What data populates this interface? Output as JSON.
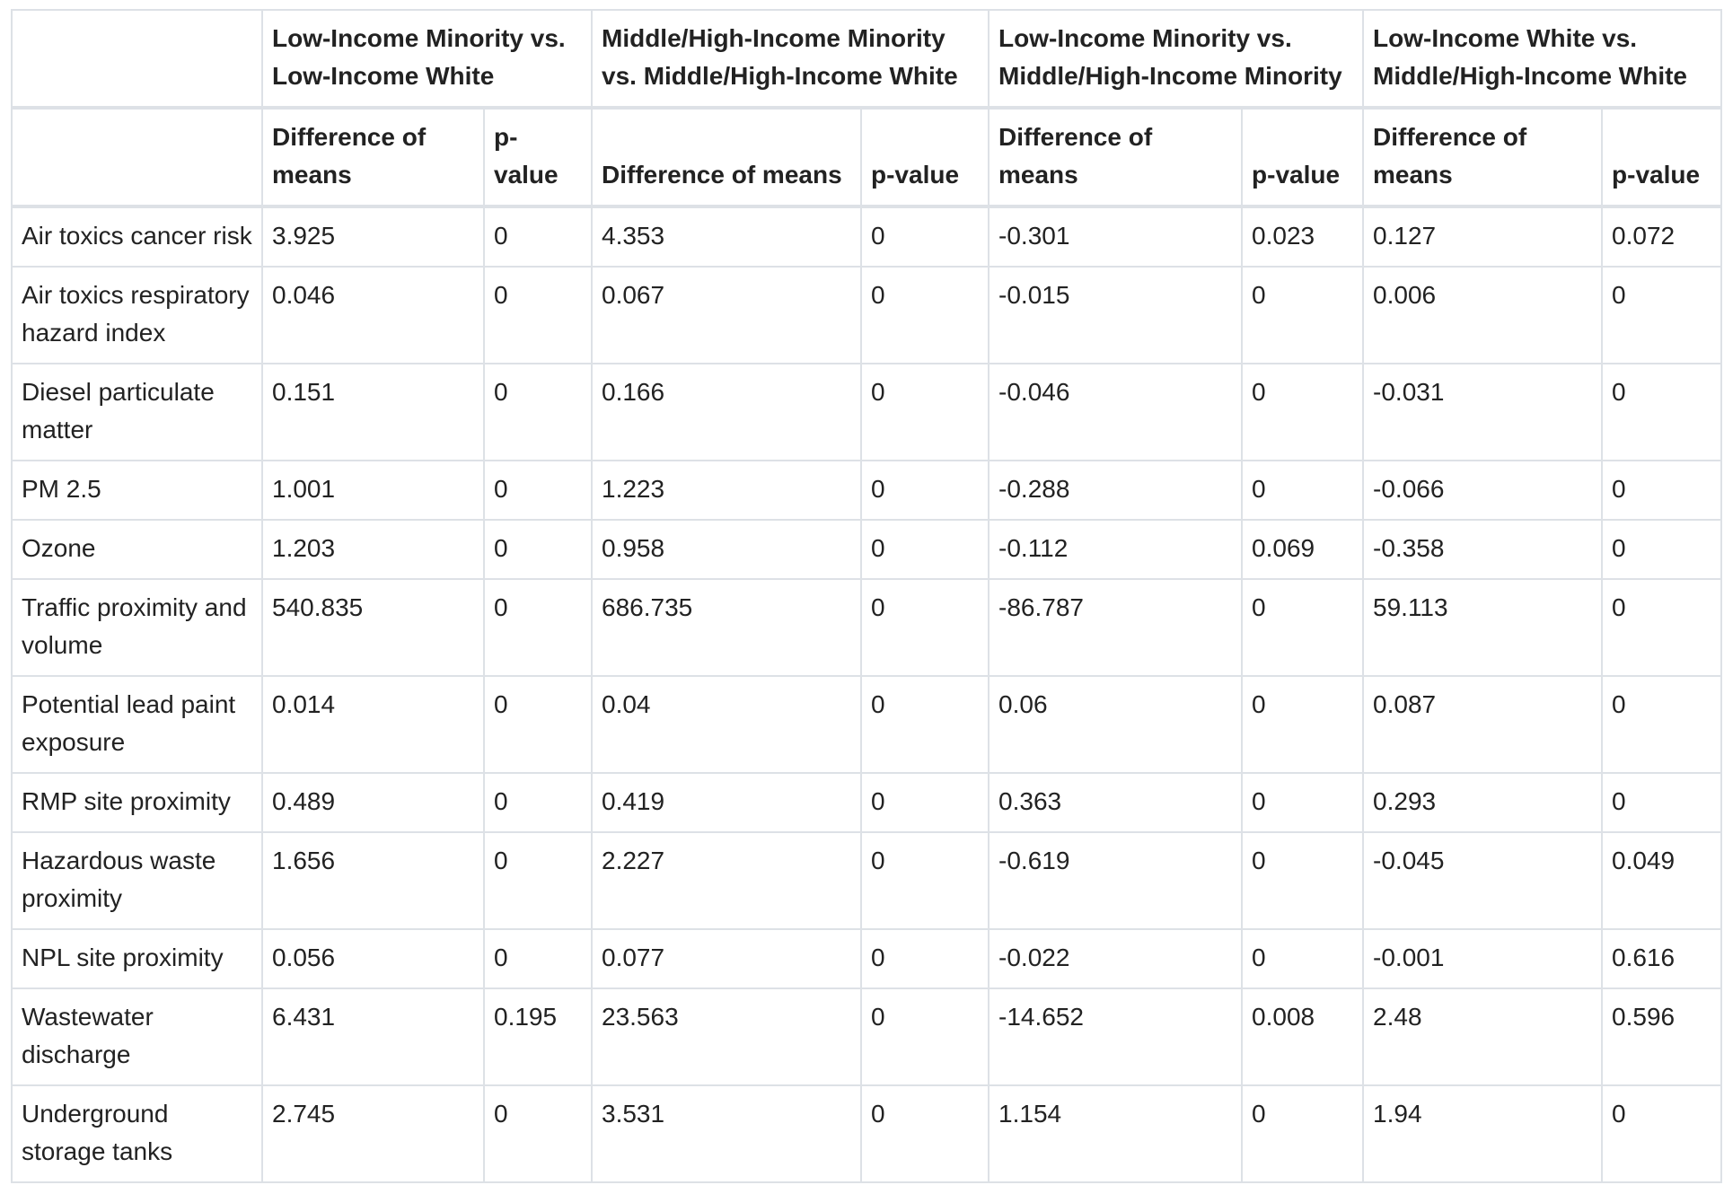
{
  "table": {
    "corner": "",
    "groups": [
      "Low-Income Minority vs. Low-Income White",
      "Middle/High-Income Minority vs. Middle/High-Income White",
      "Low-Income Minority vs. Middle/High-Income Minority",
      "Low-Income White vs. Middle/High-Income White"
    ],
    "subheaders": [
      "Difference of means",
      "p-value",
      "Difference of means",
      "p-value",
      "Difference of means",
      "p-value",
      "Difference of means",
      "p-value"
    ],
    "rows": [
      {
        "label": "Air toxics cancer risk",
        "values": [
          "3.925",
          "0",
          "4.353",
          "0",
          "-0.301",
          "0.023",
          "0.127",
          "0.072"
        ]
      },
      {
        "label": "Air toxics respiratory hazard index",
        "values": [
          "0.046",
          "0",
          "0.067",
          "0",
          "-0.015",
          "0",
          "0.006",
          "0"
        ]
      },
      {
        "label": "Diesel particulate matter",
        "values": [
          "0.151",
          "0",
          "0.166",
          "0",
          "-0.046",
          "0",
          "-0.031",
          "0"
        ]
      },
      {
        "label": "PM 2.5",
        "values": [
          "1.001",
          "0",
          "1.223",
          "0",
          "-0.288",
          "0",
          "-0.066",
          "0"
        ]
      },
      {
        "label": "Ozone",
        "values": [
          "1.203",
          "0",
          "0.958",
          "0",
          "-0.112",
          "0.069",
          "-0.358",
          "0"
        ]
      },
      {
        "label": "Traffic proximity and volume",
        "values": [
          "540.835",
          "0",
          "686.735",
          "0",
          "-86.787",
          "0",
          "59.113",
          "0"
        ]
      },
      {
        "label": "Potential lead paint exposure",
        "values": [
          "0.014",
          "0",
          "0.04",
          "0",
          "0.06",
          "0",
          "0.087",
          "0"
        ]
      },
      {
        "label": "RMP site proximity",
        "values": [
          "0.489",
          "0",
          "0.419",
          "0",
          "0.363",
          "0",
          "0.293",
          "0"
        ]
      },
      {
        "label": "Hazardous waste proximity",
        "values": [
          "1.656",
          "0",
          "2.227",
          "0",
          "-0.619",
          "0",
          "-0.045",
          "0.049"
        ]
      },
      {
        "label": "NPL site proximity",
        "values": [
          "0.056",
          "0",
          "0.077",
          "0",
          "-0.022",
          "0",
          "-0.001",
          "0.616"
        ]
      },
      {
        "label": "Wastewater discharge",
        "values": [
          "6.431",
          "0.195",
          "23.563",
          "0",
          "-14.652",
          "0.008",
          "2.48",
          "0.596"
        ]
      },
      {
        "label": "Underground storage tanks",
        "values": [
          "2.745",
          "0",
          "3.531",
          "0",
          "1.154",
          "0",
          "1.94",
          "0"
        ]
      }
    ]
  }
}
